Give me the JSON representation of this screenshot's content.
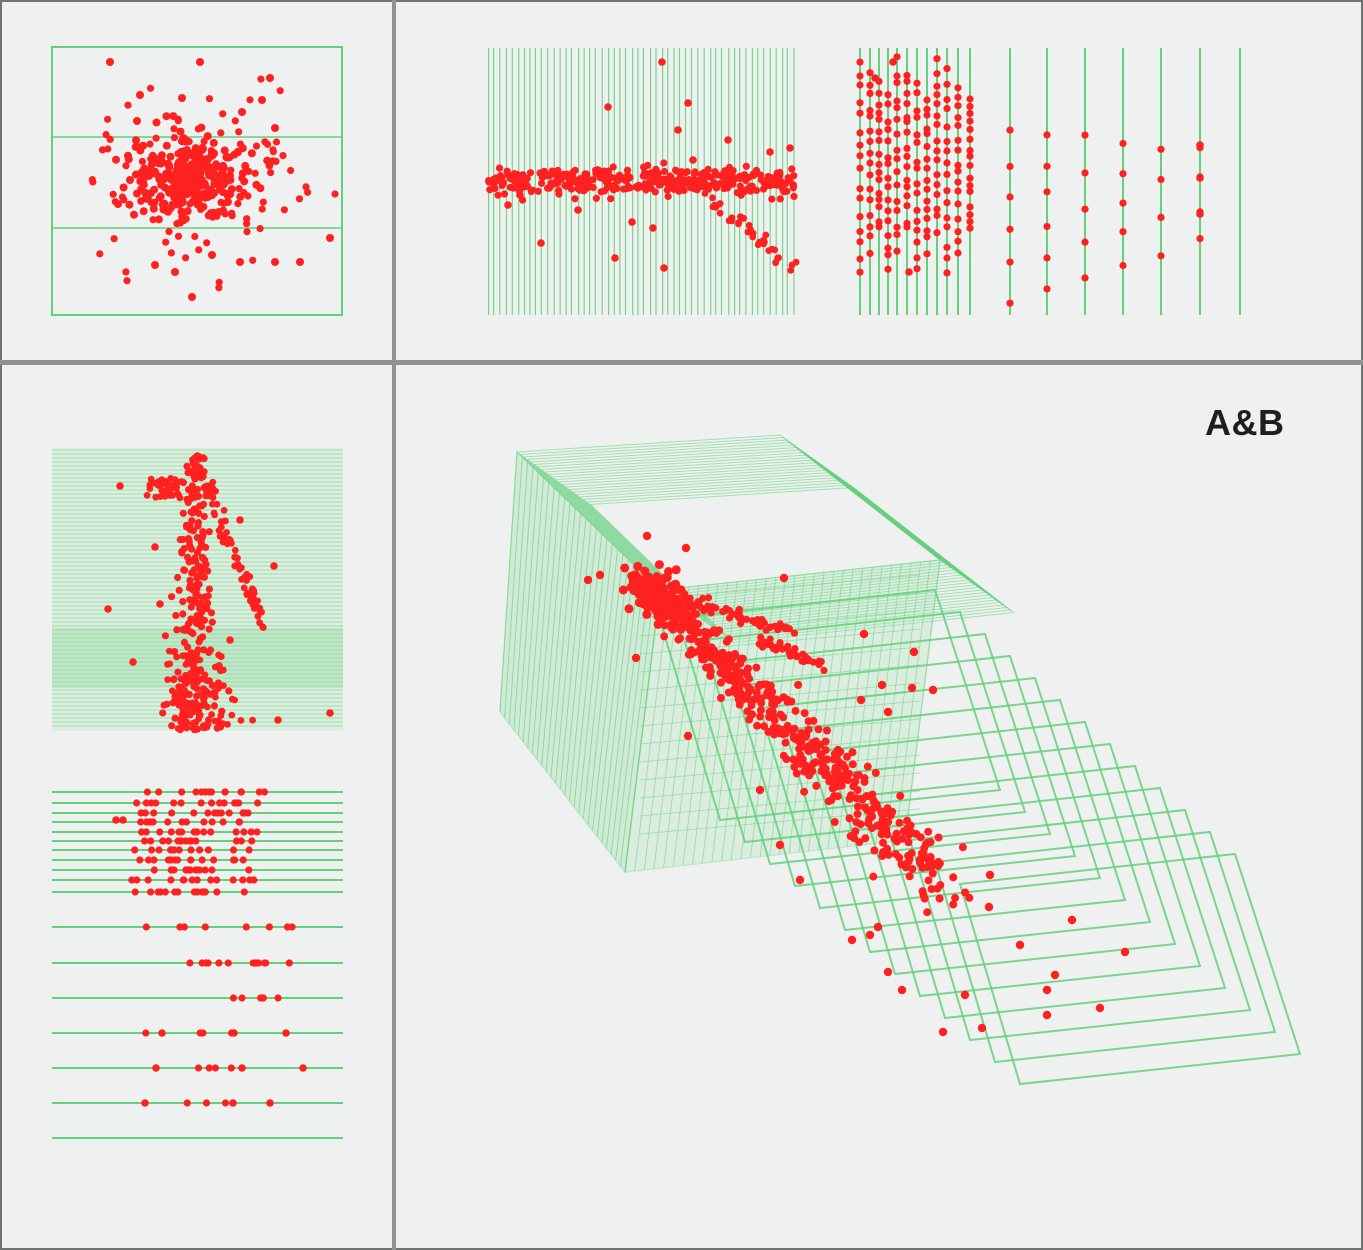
{
  "figure": {
    "label": "A&B",
    "colors": {
      "background": "#eef1f0",
      "grid": "#64d07c",
      "points": "#ff2020",
      "divider": "#8f9491"
    },
    "panels": [
      "scatter-xy",
      "vertical-slices-dense",
      "vertical-slices-sparse",
      "horizontal-slices-dense",
      "horizontal-slices-sparse",
      "3d-planes"
    ]
  }
}
